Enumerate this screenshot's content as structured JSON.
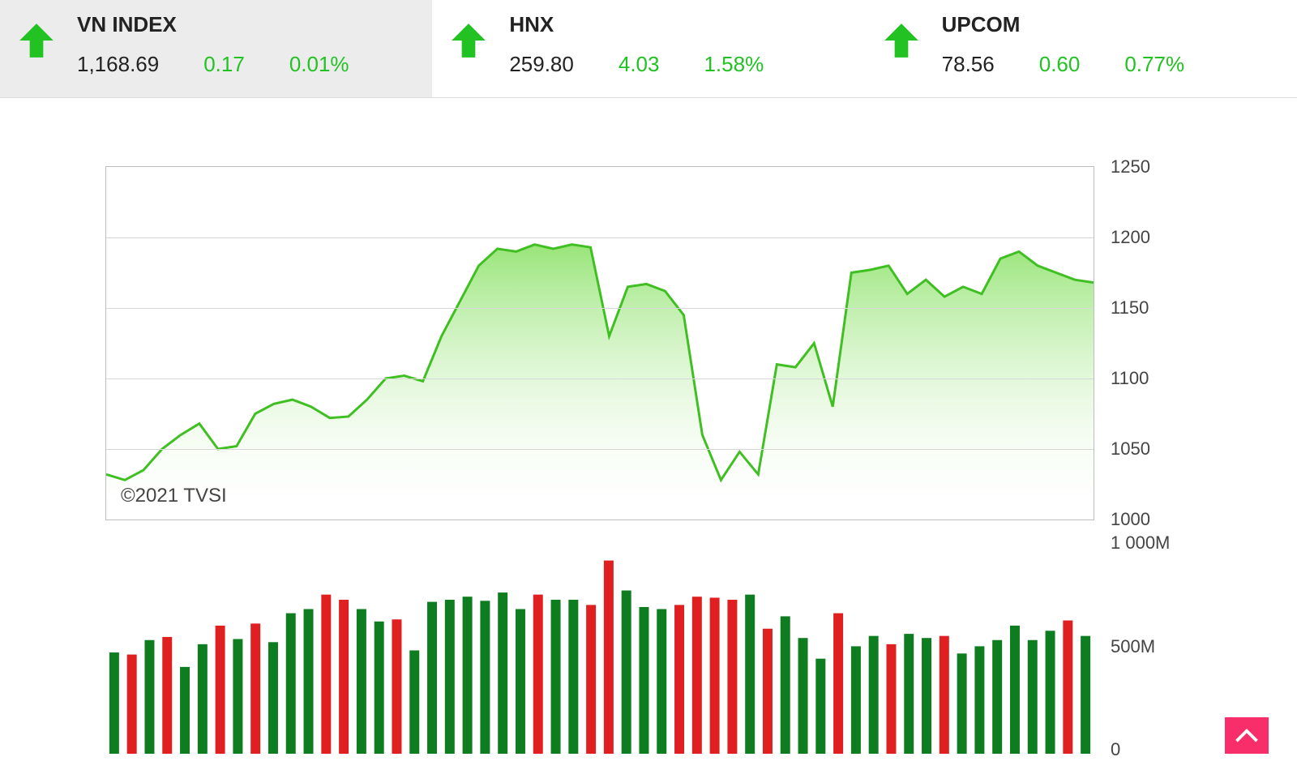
{
  "colors": {
    "up": "#22c222",
    "text": "#222222",
    "area_stroke": "#3fbf22",
    "area_fill_top": "#8de26a",
    "area_fill_bottom": "#ffffff",
    "vol_up": "#0e7d1f",
    "vol_down": "#e02020",
    "grid": "#d8d8d8",
    "border": "#bdbdbd",
    "selected_bg": "#ececec",
    "scrolltop_bg": "#f72e6a"
  },
  "tickers": [
    {
      "name": "VN INDEX",
      "value": "1,168.69",
      "change": "0.17",
      "pct": "0.01%",
      "selected": true
    },
    {
      "name": "HNX",
      "value": "259.80",
      "change": "4.03",
      "pct": "1.58%",
      "selected": false
    },
    {
      "name": "UPCOM",
      "value": "78.56",
      "change": "0.60",
      "pct": "0.77%",
      "selected": false
    }
  ],
  "area_chart": {
    "type": "area",
    "copyright": "©2021 TVSI",
    "y_axis": {
      "min": 1000,
      "max": 1250,
      "step": 50,
      "labels": [
        "1250",
        "1200",
        "1150",
        "1100",
        "1050",
        "1000"
      ]
    },
    "series": [
      1032,
      1028,
      1035,
      1050,
      1060,
      1068,
      1050,
      1052,
      1075,
      1082,
      1085,
      1080,
      1072,
      1073,
      1085,
      1100,
      1102,
      1098,
      1130,
      1155,
      1180,
      1192,
      1190,
      1195,
      1192,
      1195,
      1193,
      1130,
      1165,
      1167,
      1162,
      1145,
      1060,
      1028,
      1048,
      1032,
      1110,
      1108,
      1125,
      1080,
      1175,
      1177,
      1180,
      1160,
      1170,
      1158,
      1165,
      1160,
      1185,
      1190,
      1180,
      1175,
      1170,
      1168
    ],
    "line_width": 3
  },
  "volume_chart": {
    "type": "bar",
    "y_axis": {
      "min": 0,
      "max": 1000,
      "labels": [
        "1 000M",
        "500M",
        "0"
      ]
    },
    "bars": [
      {
        "v": 490,
        "c": "up"
      },
      {
        "v": 480,
        "c": "down"
      },
      {
        "v": 550,
        "c": "up"
      },
      {
        "v": 565,
        "c": "down"
      },
      {
        "v": 420,
        "c": "up"
      },
      {
        "v": 530,
        "c": "up"
      },
      {
        "v": 620,
        "c": "down"
      },
      {
        "v": 555,
        "c": "up"
      },
      {
        "v": 630,
        "c": "down"
      },
      {
        "v": 540,
        "c": "up"
      },
      {
        "v": 680,
        "c": "up"
      },
      {
        "v": 700,
        "c": "up"
      },
      {
        "v": 770,
        "c": "down"
      },
      {
        "v": 745,
        "c": "down"
      },
      {
        "v": 700,
        "c": "up"
      },
      {
        "v": 640,
        "c": "up"
      },
      {
        "v": 650,
        "c": "down"
      },
      {
        "v": 500,
        "c": "up"
      },
      {
        "v": 735,
        "c": "up"
      },
      {
        "v": 745,
        "c": "up"
      },
      {
        "v": 760,
        "c": "up"
      },
      {
        "v": 740,
        "c": "up"
      },
      {
        "v": 780,
        "c": "up"
      },
      {
        "v": 700,
        "c": "up"
      },
      {
        "v": 770,
        "c": "down"
      },
      {
        "v": 745,
        "c": "up"
      },
      {
        "v": 745,
        "c": "up"
      },
      {
        "v": 720,
        "c": "down"
      },
      {
        "v": 935,
        "c": "down"
      },
      {
        "v": 790,
        "c": "up"
      },
      {
        "v": 710,
        "c": "up"
      },
      {
        "v": 700,
        "c": "up"
      },
      {
        "v": 720,
        "c": "down"
      },
      {
        "v": 760,
        "c": "down"
      },
      {
        "v": 755,
        "c": "down"
      },
      {
        "v": 745,
        "c": "down"
      },
      {
        "v": 770,
        "c": "up"
      },
      {
        "v": 605,
        "c": "down"
      },
      {
        "v": 665,
        "c": "up"
      },
      {
        "v": 560,
        "c": "up"
      },
      {
        "v": 460,
        "c": "up"
      },
      {
        "v": 680,
        "c": "down"
      },
      {
        "v": 520,
        "c": "up"
      },
      {
        "v": 570,
        "c": "up"
      },
      {
        "v": 530,
        "c": "down"
      },
      {
        "v": 580,
        "c": "up"
      },
      {
        "v": 560,
        "c": "up"
      },
      {
        "v": 570,
        "c": "down"
      },
      {
        "v": 485,
        "c": "up"
      },
      {
        "v": 520,
        "c": "up"
      },
      {
        "v": 550,
        "c": "up"
      },
      {
        "v": 620,
        "c": "up"
      },
      {
        "v": 550,
        "c": "up"
      },
      {
        "v": 595,
        "c": "up"
      },
      {
        "v": 645,
        "c": "down"
      },
      {
        "v": 570,
        "c": "up"
      }
    ],
    "bar_width_ratio": 0.55
  }
}
